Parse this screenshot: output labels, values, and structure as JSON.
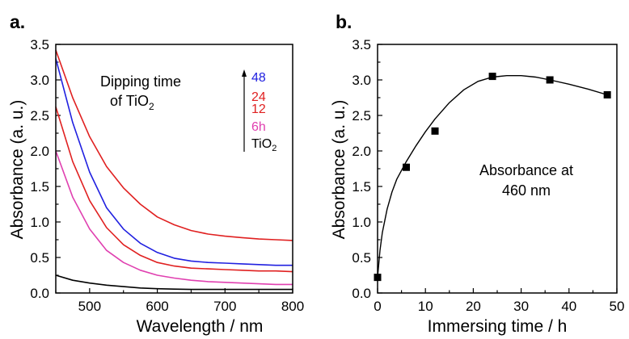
{
  "chart_data": [
    {
      "type": "line",
      "panel_label": "a.",
      "xlabel": "Wavelength / nm",
      "ylabel": "Absorbance (a. u.)",
      "xlim": [
        450,
        800
      ],
      "ylim": [
        0,
        3.5
      ],
      "xticks": [
        500,
        600,
        700,
        800
      ],
      "yticks": [
        0.0,
        0.5,
        1.0,
        1.5,
        2.0,
        2.5,
        3.0,
        3.5
      ],
      "grid": false,
      "annotation": {
        "line1": "Dipping time",
        "line2_main": "of TiO",
        "line2_sub": "2"
      },
      "legend": {
        "placement": "top-right",
        "entries": [
          {
            "label": "48",
            "color": "#2020e0"
          },
          {
            "label": "24",
            "color": "#e02020"
          },
          {
            "label": "12",
            "color": "#e02020"
          },
          {
            "label": "6h",
            "color": "#e040b0"
          },
          {
            "label_main": "TiO",
            "label_sub": "2",
            "color": "#000000"
          }
        ]
      },
      "series": [
        {
          "color": "#e02020",
          "x": [
            450,
            475,
            500,
            525,
            550,
            575,
            600,
            625,
            650,
            675,
            700,
            725,
            750,
            775,
            800
          ],
          "y": [
            3.42,
            2.75,
            2.2,
            1.78,
            1.48,
            1.25,
            1.07,
            0.96,
            0.88,
            0.83,
            0.8,
            0.78,
            0.76,
            0.75,
            0.74
          ]
        },
        {
          "color": "#2020e0",
          "x": [
            450,
            475,
            500,
            525,
            550,
            575,
            600,
            625,
            650,
            675,
            700,
            725,
            750,
            775,
            800
          ],
          "y": [
            3.3,
            2.4,
            1.7,
            1.2,
            0.9,
            0.7,
            0.57,
            0.49,
            0.45,
            0.43,
            0.42,
            0.41,
            0.4,
            0.39,
            0.39
          ]
        },
        {
          "color": "#e02020",
          "x": [
            450,
            475,
            500,
            525,
            550,
            575,
            600,
            625,
            650,
            675,
            700,
            725,
            750,
            775,
            800
          ],
          "y": [
            2.62,
            1.85,
            1.3,
            0.92,
            0.68,
            0.53,
            0.43,
            0.38,
            0.35,
            0.34,
            0.33,
            0.32,
            0.31,
            0.31,
            0.3
          ]
        },
        {
          "color": "#e040b0",
          "x": [
            450,
            475,
            500,
            525,
            550,
            575,
            600,
            625,
            650,
            675,
            700,
            725,
            750,
            775,
            800
          ],
          "y": [
            2.0,
            1.35,
            0.9,
            0.6,
            0.43,
            0.32,
            0.25,
            0.21,
            0.18,
            0.16,
            0.15,
            0.14,
            0.13,
            0.12,
            0.12
          ]
        },
        {
          "color": "#000000",
          "x": [
            450,
            475,
            500,
            525,
            550,
            575,
            600,
            625,
            650,
            675,
            700,
            725,
            750,
            775,
            800
          ],
          "y": [
            0.25,
            0.18,
            0.14,
            0.11,
            0.09,
            0.07,
            0.06,
            0.055,
            0.05,
            0.05,
            0.05,
            0.05,
            0.05,
            0.05,
            0.05
          ]
        }
      ]
    },
    {
      "type": "scatter",
      "panel_label": "b.",
      "xlabel": "Immersing time / h",
      "ylabel": "Absorbance (a. u.)",
      "xlim": [
        0,
        50
      ],
      "ylim": [
        0,
        3.5
      ],
      "xticks": [
        0,
        10,
        20,
        30,
        40,
        50
      ],
      "yticks": [
        0.0,
        0.5,
        1.0,
        1.5,
        2.0,
        2.5,
        3.0,
        3.5
      ],
      "grid": false,
      "annotation": {
        "line1": "Absorbance at",
        "line2": "460 nm"
      },
      "points": {
        "x": [
          0,
          6,
          12,
          24,
          36,
          48
        ],
        "y": [
          0.22,
          1.77,
          2.28,
          3.05,
          3.0,
          2.79
        ]
      },
      "fit": {
        "x": [
          0,
          0.5,
          1,
          2,
          3,
          4,
          6,
          8,
          10,
          12,
          15,
          18,
          21,
          24,
          27,
          30,
          33,
          36,
          40,
          44,
          48
        ],
        "y": [
          0.22,
          0.6,
          0.85,
          1.18,
          1.42,
          1.6,
          1.85,
          2.07,
          2.27,
          2.45,
          2.68,
          2.86,
          2.98,
          3.04,
          3.06,
          3.06,
          3.04,
          3.0,
          2.94,
          2.87,
          2.79
        ]
      }
    }
  ]
}
